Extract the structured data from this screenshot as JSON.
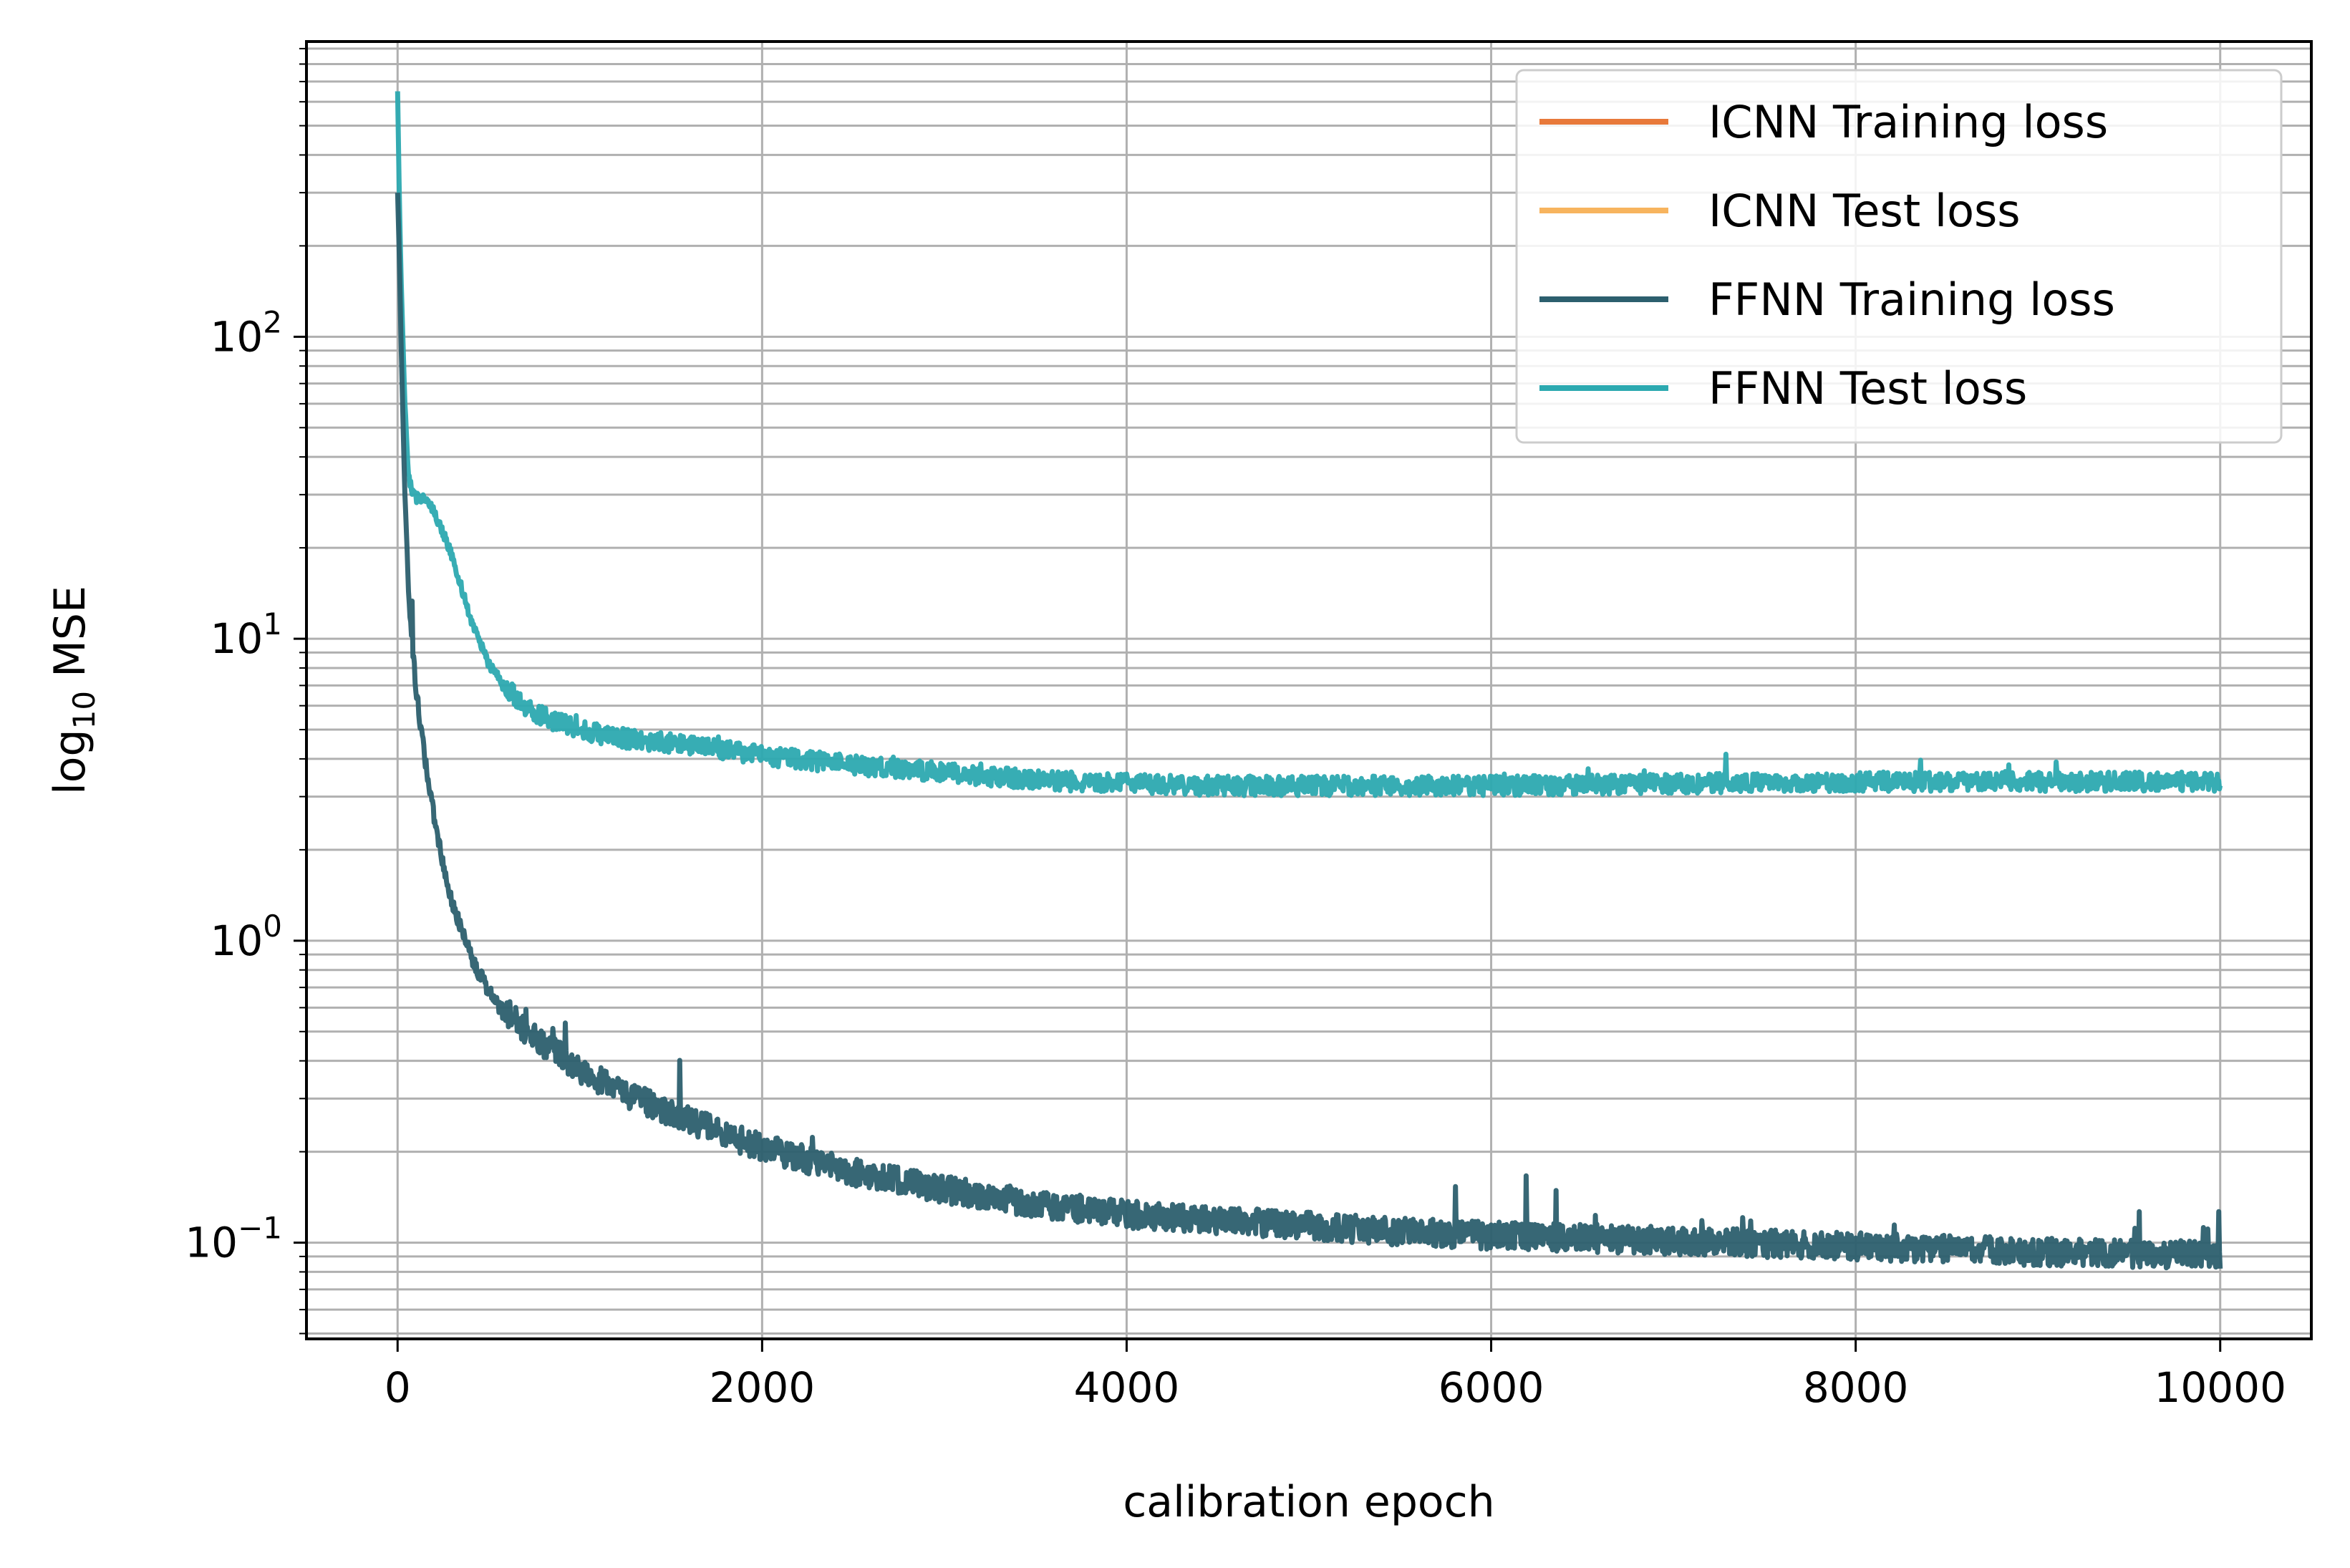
{
  "chart_data": {
    "type": "line",
    "title": "",
    "xlabel": "calibration epoch",
    "ylabel": "log",
    "ylabel_subscript": "10",
    "ylabel_suffix": " MSE",
    "xlim": [
      -500,
      10500
    ],
    "ylim": [
      0.048,
      950
    ],
    "yscale": "log",
    "grid": true,
    "grid_minor_y": true,
    "legend_position": "top-right",
    "x_ticks": [
      {
        "value": 0,
        "label": "0"
      },
      {
        "value": 2000,
        "label": "2000"
      },
      {
        "value": 4000,
        "label": "4000"
      },
      {
        "value": 6000,
        "label": "6000"
      },
      {
        "value": 8000,
        "label": "8000"
      },
      {
        "value": 10000,
        "label": "10000"
      }
    ],
    "y_ticks": [
      {
        "value": 0.1,
        "base": "10",
        "exp": "−1"
      },
      {
        "value": 1,
        "base": "10",
        "exp": "0"
      },
      {
        "value": 10,
        "base": "10",
        "exp": "1"
      },
      {
        "value": 100,
        "base": "10",
        "exp": "2"
      }
    ],
    "series": [
      {
        "name": "ICNN Training loss",
        "color": "#e8793a",
        "visible_in_plot": false,
        "x": [],
        "y": []
      },
      {
        "name": "ICNN Test loss",
        "color": "#f7b45e",
        "visible_in_plot": false,
        "x": [],
        "y": []
      },
      {
        "name": "FFNN Training loss",
        "color": "#2c5f6e",
        "noise_band": [
          0.93,
          1.15
        ],
        "x": [
          0,
          10,
          20,
          40,
          60,
          80,
          100,
          150,
          200,
          250,
          300,
          400,
          500,
          600,
          700,
          800,
          1000,
          1200,
          1500,
          1800,
          2000,
          2500,
          3000,
          3500,
          4000,
          4500,
          5000,
          5500,
          6000,
          6500,
          7000,
          7500,
          8000,
          8500,
          9000,
          9500,
          10000
        ],
        "y": [
          300,
          180,
          90,
          30,
          15,
          9.5,
          7,
          4,
          2.6,
          1.8,
          1.35,
          0.9,
          0.68,
          0.56,
          0.49,
          0.44,
          0.36,
          0.31,
          0.26,
          0.22,
          0.2,
          0.165,
          0.145,
          0.13,
          0.12,
          0.115,
          0.11,
          0.105,
          0.102,
          0.1,
          0.098,
          0.096,
          0.094,
          0.092,
          0.09,
          0.089,
          0.088
        ]
      },
      {
        "name": "FFNN Test loss",
        "color": "#2ca9b0",
        "noise_band": [
          0.93,
          1.08
        ],
        "x": [
          0,
          10,
          20,
          40,
          60,
          80,
          100,
          150,
          200,
          250,
          300,
          400,
          500,
          600,
          700,
          800,
          1000,
          1200,
          1500,
          2000,
          2500,
          3000,
          3500,
          4000,
          4500,
          5000,
          5500,
          6000,
          7000,
          8000,
          9000,
          10000
        ],
        "y": [
          650,
          280,
          150,
          60,
          36,
          31,
          30,
          30,
          27,
          23,
          19,
          12,
          8.5,
          6.8,
          6.0,
          5.5,
          5.0,
          4.7,
          4.5,
          4.1,
          3.8,
          3.6,
          3.4,
          3.3,
          3.25,
          3.25,
          3.25,
          3.25,
          3.3,
          3.35,
          3.35,
          3.35
        ]
      }
    ]
  }
}
